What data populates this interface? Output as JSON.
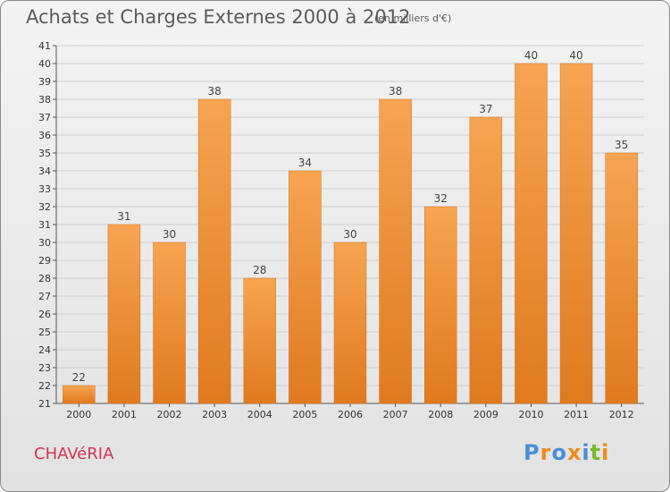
{
  "header": {
    "title": "Achats et Charges Externes 2000 à 2012",
    "subtitle": "(en milliers d'€)"
  },
  "footer": {
    "place": "CHAVéRIA",
    "logo": "Proxiti"
  },
  "colors": {
    "bar_light": "#f7a452",
    "bar_dark": "#e07a1f",
    "logo_letters": [
      "#4a8ed8",
      "#f08a1c",
      "#4a8ed8",
      "#f08a1c",
      "#4a8ed8",
      "#7ab929",
      "#f08a1c"
    ]
  },
  "chart_data": {
    "type": "bar",
    "title": "Achats et Charges Externes 2000 à 2012",
    "subtitle": "(en milliers d'€)",
    "categories": [
      "2000",
      "2001",
      "2002",
      "2003",
      "2004",
      "2005",
      "2006",
      "2007",
      "2008",
      "2009",
      "2010",
      "2011",
      "2012"
    ],
    "values": [
      22,
      31,
      30,
      38,
      28,
      34,
      30,
      38,
      32,
      37,
      40,
      40,
      35
    ],
    "ylim": [
      21,
      41
    ],
    "yticks": [
      21,
      22,
      23,
      24,
      25,
      26,
      27,
      28,
      29,
      30,
      31,
      32,
      33,
      34,
      35,
      36,
      37,
      38,
      39,
      40,
      41
    ],
    "grid": true,
    "legend": "none",
    "xlabel": "",
    "ylabel": ""
  }
}
